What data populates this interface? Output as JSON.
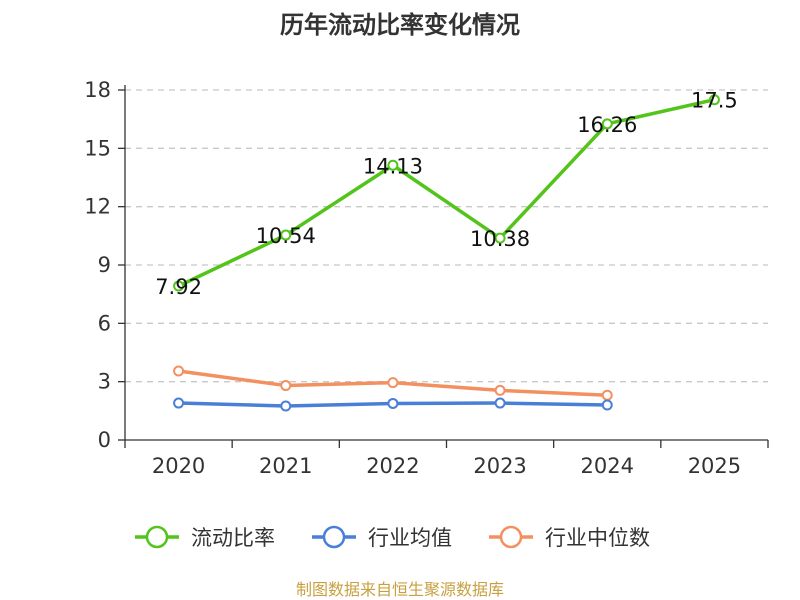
{
  "chart_data": {
    "type": "line",
    "title": "历年流动比率变化情况",
    "categories": [
      "2020",
      "2021",
      "2022",
      "2023",
      "2024",
      "2025"
    ],
    "ylim": [
      0,
      18
    ],
    "yticks": [
      0,
      3,
      6,
      9,
      12,
      15,
      18
    ],
    "grid": true,
    "legend_position": "bottom",
    "series": [
      {
        "name": "流动比率",
        "color": "#52c41a",
        "values": [
          7.92,
          10.54,
          14.13,
          10.38,
          16.26,
          17.5
        ],
        "labels": [
          "7.92",
          "10.54",
          "14.13",
          "10.38",
          "16.26",
          "17.5"
        ],
        "show_labels": true
      },
      {
        "name": "行业均值",
        "color": "#4a7fd8",
        "values": [
          1.9,
          1.75,
          1.88,
          1.9,
          1.8,
          null
        ],
        "show_labels": false
      },
      {
        "name": "行业中位数",
        "color": "#f39060",
        "values": [
          3.55,
          2.8,
          2.95,
          2.55,
          2.3,
          null
        ],
        "show_labels": false
      }
    ]
  },
  "source_text": "制图数据来自恒生聚源数据库"
}
